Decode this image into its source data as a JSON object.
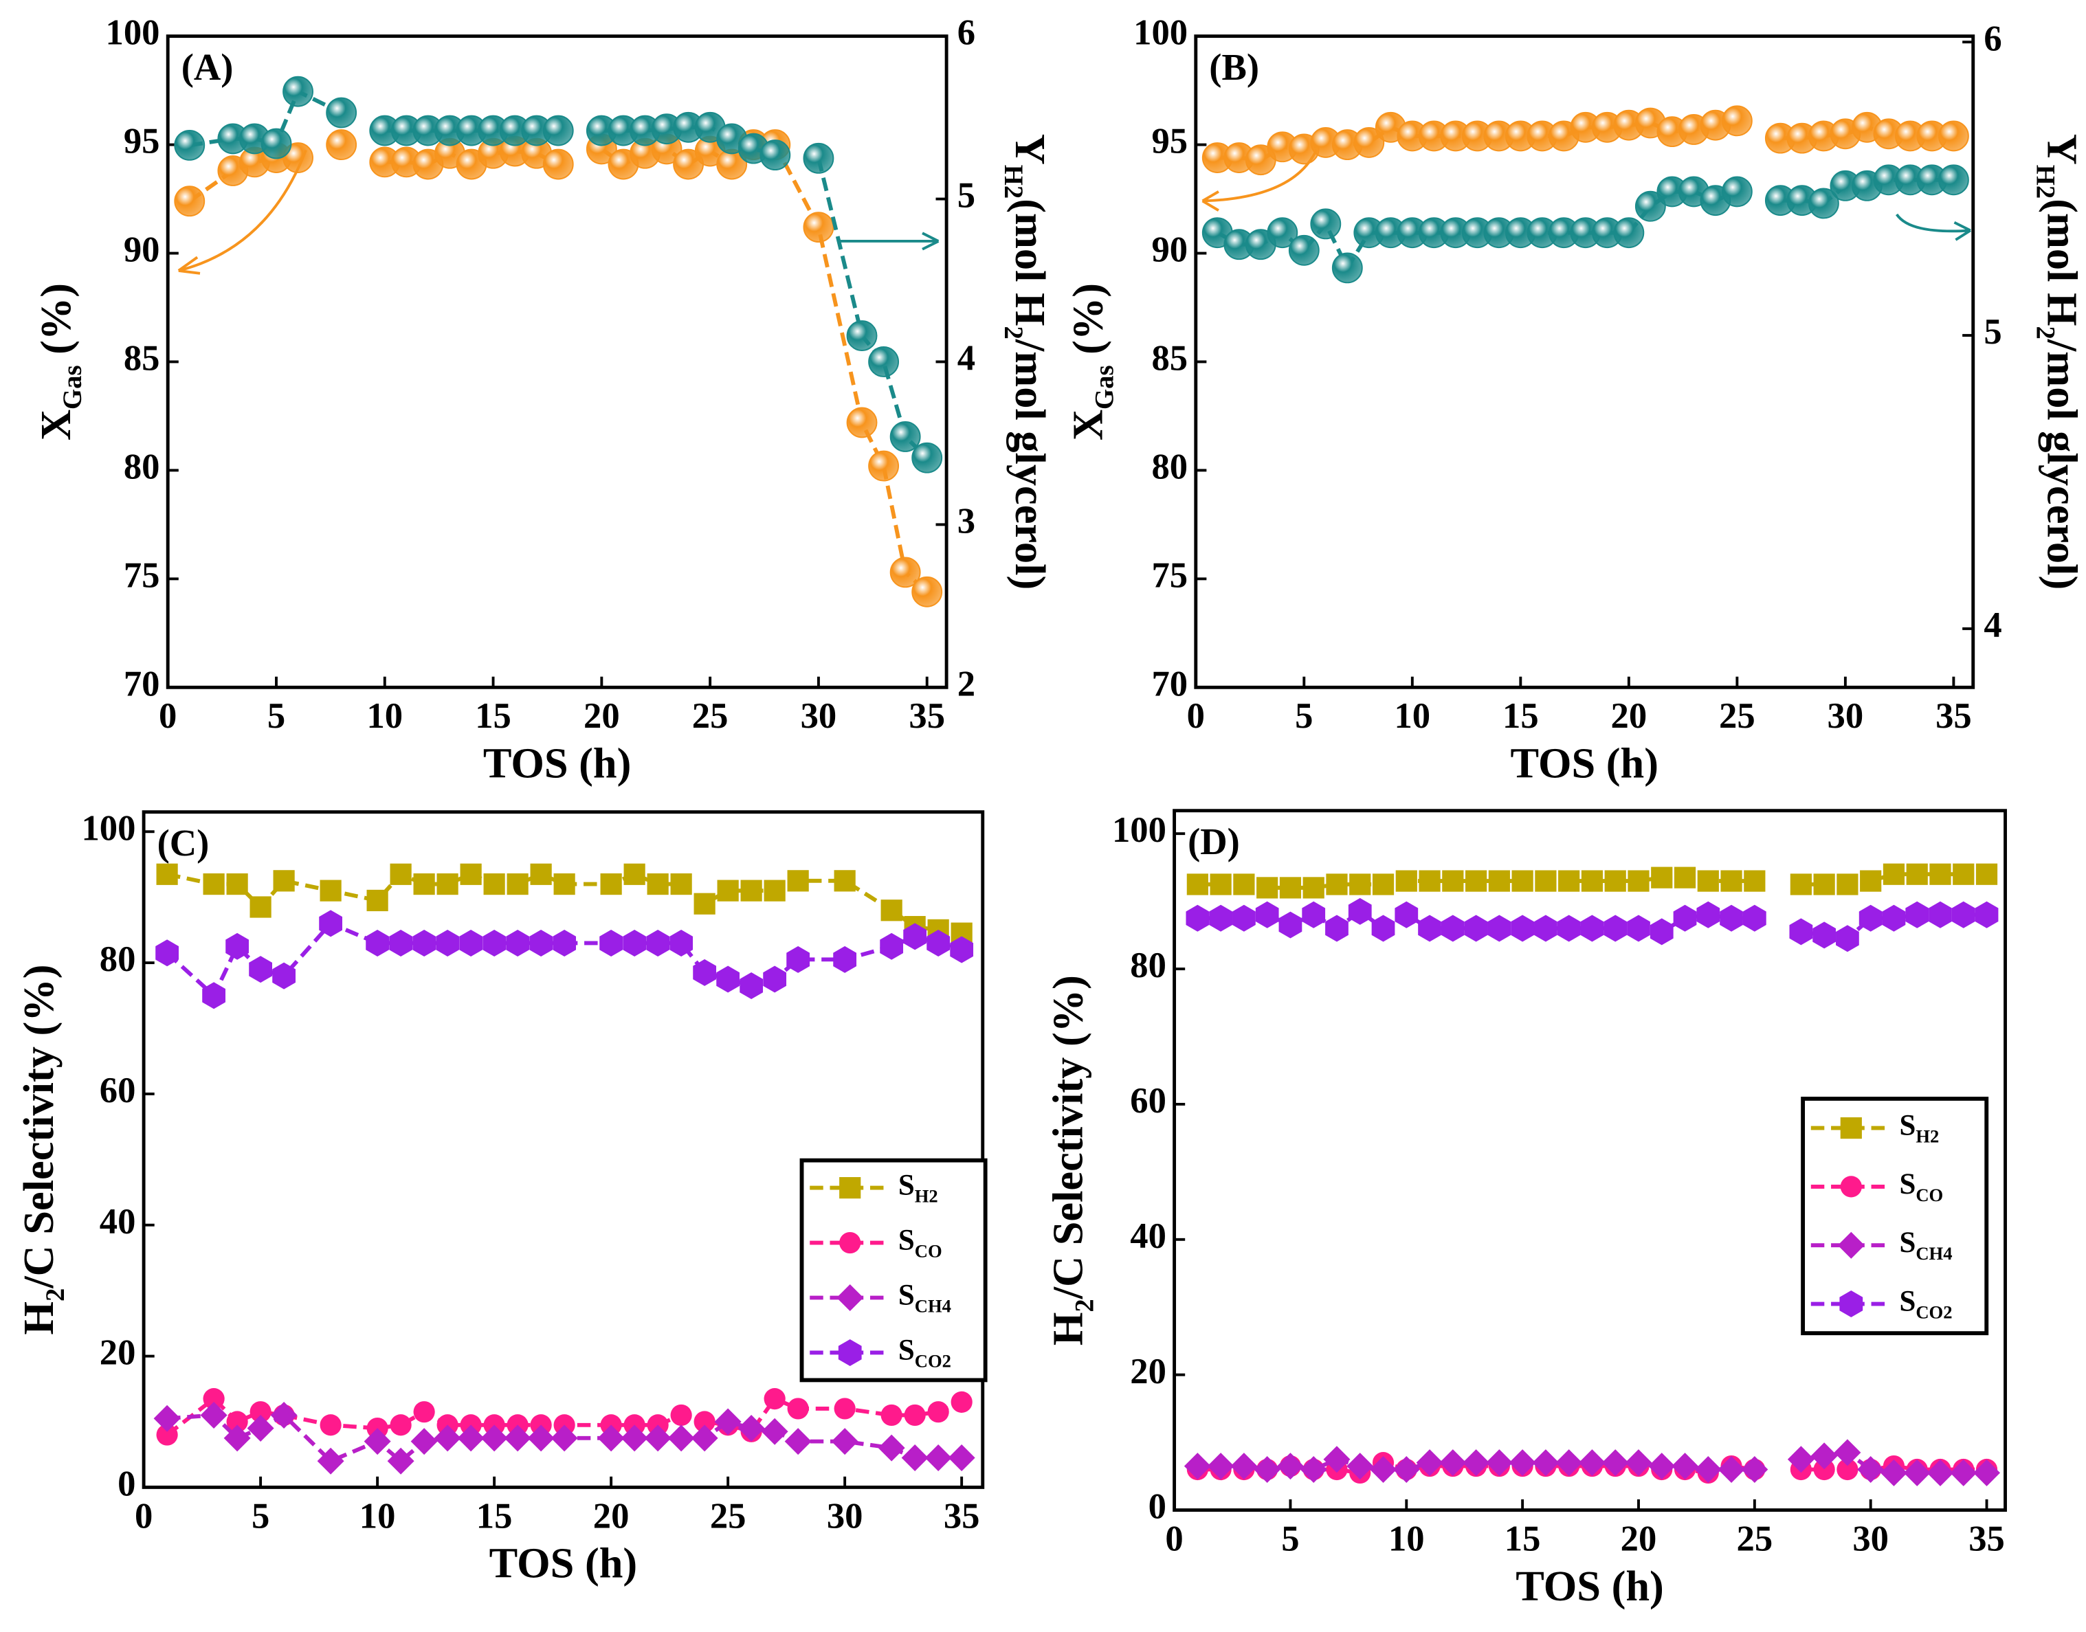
{
  "chart_data": [
    {
      "type": "line",
      "title": "(A)",
      "xlabel": "TOS (h)",
      "ylabel": [
        "X",
        "Gas",
        " (%)"
      ],
      "y2label": [
        "Y",
        "H2",
        "(mol H",
        "2",
        "/mol glycerol)"
      ],
      "xlim": [
        0,
        35.9
      ],
      "ylim": [
        70,
        100
      ],
      "y2lim": [
        2,
        6
      ],
      "xticks": [
        0,
        5,
        10,
        15,
        20,
        25,
        30,
        35
      ],
      "yticks": [
        70,
        75,
        80,
        85,
        90,
        95,
        100
      ],
      "y2ticks": [
        2,
        3,
        4,
        5,
        6
      ],
      "series": [
        {
          "color": "#f7941d",
          "marker": "sphere",
          "axis": "y",
          "x": [
            1,
            3,
            4,
            5,
            6,
            7,
            8,
            9,
            10,
            11,
            12,
            13,
            14,
            15,
            16,
            17,
            18,
            19,
            20,
            21,
            22,
            23,
            24,
            25,
            26,
            27,
            28,
            30,
            32,
            33,
            34,
            35
          ],
          "values": [
            92.4,
            93.8,
            94.2,
            94.4,
            94.4,
            null,
            95,
            null,
            94.2,
            94.2,
            94.1,
            94.6,
            94.1,
            94.6,
            94.7,
            94.6,
            94.1,
            null,
            94.8,
            94.1,
            94.6,
            94.8,
            94.1,
            94.7,
            94.1,
            95,
            95,
            91.2,
            82.2,
            80.2,
            75.3,
            74.4
          ]
        },
        {
          "color": "#1a8a8a",
          "marker": "sphere",
          "axis": "y2",
          "x": [
            1,
            3,
            4,
            5,
            6,
            8,
            9,
            10,
            11,
            12,
            13,
            14,
            15,
            16,
            17,
            18,
            19,
            20,
            21,
            22,
            23,
            24,
            25,
            26,
            27,
            28,
            29,
            30,
            32,
            33,
            34,
            35
          ],
          "values": [
            5.33,
            5.37,
            5.37,
            5.34,
            5.66,
            5.53,
            null,
            5.42,
            5.42,
            5.42,
            5.42,
            5.42,
            5.42,
            5.42,
            5.42,
            5.42,
            null,
            5.42,
            5.42,
            5.42,
            5.43,
            5.44,
            5.44,
            5.37,
            5.31,
            5.27,
            null,
            5.25,
            4.16,
            4.0,
            3.54,
            3.41
          ]
        }
      ]
    },
    {
      "type": "line",
      "title": "(B)",
      "xlabel": "TOS (h)",
      "ylabel": [
        "X",
        "Gas",
        " (%)"
      ],
      "y2label": [
        "Y",
        "H2",
        "(mol H",
        "2",
        "/mol glycerol)"
      ],
      "xlim": [
        0,
        35.9
      ],
      "ylim": [
        70,
        100
      ],
      "y2lim": [
        3.8,
        6.02
      ],
      "xticks": [
        0,
        5,
        10,
        15,
        20,
        25,
        30,
        35
      ],
      "yticks": [
        70,
        75,
        80,
        85,
        90,
        95,
        100
      ],
      "y2ticks": [
        4,
        5,
        6
      ],
      "x": [
        1,
        2,
        3,
        4,
        5,
        6,
        7,
        8,
        9,
        10,
        11,
        12,
        13,
        14,
        15,
        16,
        17,
        18,
        19,
        20,
        21,
        22,
        23,
        24,
        25,
        26,
        27,
        28,
        29,
        30,
        31,
        32,
        33,
        34,
        35
      ],
      "series": [
        {
          "color": "#f7941d",
          "marker": "sphere",
          "axis": "y",
          "values": [
            94.4,
            94.4,
            94.3,
            94.9,
            94.8,
            95.1,
            95,
            95.1,
            95.8,
            95.4,
            95.4,
            95.4,
            95.4,
            95.4,
            95.4,
            95.4,
            95.4,
            95.8,
            95.8,
            95.9,
            96,
            95.6,
            95.7,
            95.9,
            96.1,
            null,
            95.3,
            95.3,
            95.4,
            95.5,
            95.8,
            95.5,
            95.4,
            95.4,
            95.4
          ]
        },
        {
          "color": "#1a8a8a",
          "marker": "sphere",
          "axis": "y2",
          "values": [
            5.35,
            5.31,
            5.31,
            5.35,
            5.29,
            5.38,
            5.23,
            5.35,
            5.35,
            5.35,
            5.35,
            5.35,
            5.35,
            5.35,
            5.35,
            5.35,
            5.35,
            5.35,
            5.35,
            5.35,
            5.44,
            5.49,
            5.49,
            5.46,
            5.49,
            null,
            5.46,
            5.46,
            5.45,
            5.51,
            5.51,
            5.53,
            5.53,
            5.53,
            5.53
          ]
        }
      ]
    },
    {
      "type": "line",
      "title": "(C)",
      "xlabel": "TOS (h)",
      "ylabel": [
        "H",
        "2",
        "/C Selectivity (%)"
      ],
      "xlim": [
        0,
        35.9
      ],
      "ylim": [
        0,
        103
      ],
      "xticks": [
        0,
        5,
        10,
        15,
        20,
        25,
        30,
        35
      ],
      "yticks": [
        0,
        20,
        40,
        60,
        80,
        100
      ],
      "legend": "center right",
      "x": [
        1,
        3,
        4,
        5,
        6,
        8,
        10,
        11,
        12,
        13,
        14,
        15,
        16,
        17,
        18,
        20,
        21,
        22,
        23,
        24,
        25,
        26,
        27,
        28,
        30,
        32,
        33,
        34,
        35
      ],
      "series": [
        {
          "name": [
            "S",
            "H2"
          ],
          "color": "#c0a800",
          "marker": "square",
          "values": [
            93.5,
            92,
            92,
            88.5,
            92.5,
            91,
            89.5,
            93.5,
            92,
            92,
            93.5,
            92,
            92,
            93.5,
            92,
            92,
            93.5,
            92,
            92,
            89,
            91,
            91,
            91,
            92.5,
            92.5,
            88,
            85.5,
            85,
            84.5
          ]
        },
        {
          "name": [
            "S",
            "CO"
          ],
          "color": "#ff1a8c",
          "marker": "circle",
          "values": [
            8,
            13.5,
            10,
            11.5,
            11,
            9.5,
            9,
            9.5,
            11.5,
            9.5,
            9.5,
            9.5,
            9.5,
            9.5,
            9.5,
            9.5,
            9.5,
            9.5,
            11,
            10,
            9.5,
            8.5,
            13.5,
            12,
            12,
            11,
            11,
            11.5,
            13
          ]
        },
        {
          "name": [
            "S",
            "CH4"
          ],
          "color": "#b81fc8",
          "marker": "diamond",
          "values": [
            10.5,
            11,
            7.5,
            9,
            11,
            4,
            7,
            4,
            7,
            7.5,
            7.5,
            7.5,
            7.5,
            7.5,
            7.5,
            7.5,
            7.5,
            7.5,
            7.5,
            7.5,
            10,
            9,
            8.5,
            7,
            7,
            6,
            4.5,
            4.5,
            4.5
          ]
        },
        {
          "name": [
            "S",
            "CO2"
          ],
          "color": "#9a1fe6",
          "marker": "hexagon",
          "values": [
            81.5,
            75,
            82.5,
            79,
            78,
            86,
            83,
            83,
            83,
            83,
            83,
            83,
            83,
            83,
            83,
            83,
            83,
            83,
            83,
            78.5,
            77.5,
            76.5,
            77.5,
            80.5,
            80.5,
            82.5,
            84,
            83,
            82
          ]
        }
      ]
    },
    {
      "type": "line",
      "title": "(D)",
      "xlabel": "TOS (h)",
      "ylabel": [
        "H",
        "2",
        "/C Selectivity (%)"
      ],
      "xlim": [
        0,
        35.8
      ],
      "ylim": [
        0,
        103.4
      ],
      "xticks": [
        0,
        5,
        10,
        15,
        20,
        25,
        30,
        35
      ],
      "yticks": [
        0,
        20,
        40,
        60,
        80,
        100
      ],
      "legend": "center right",
      "x": [
        1,
        2,
        3,
        4,
        5,
        6,
        7,
        8,
        9,
        10,
        11,
        12,
        13,
        14,
        15,
        16,
        17,
        18,
        19,
        20,
        21,
        22,
        23,
        24,
        25,
        26,
        27,
        28,
        29,
        30,
        31,
        32,
        33,
        34,
        35
      ],
      "series": [
        {
          "name": [
            "S",
            "H2"
          ],
          "color": "#c0a800",
          "marker": "square",
          "values": [
            92.5,
            92.5,
            92.5,
            92,
            92,
            92,
            92.5,
            92.5,
            92.5,
            93,
            93,
            93,
            93,
            93,
            93,
            93,
            93,
            93,
            93,
            93,
            93.5,
            93.5,
            93,
            93,
            93,
            null,
            92.5,
            92.5,
            92.5,
            93,
            94,
            94,
            94,
            94,
            94
          ]
        },
        {
          "name": [
            "S",
            "CO"
          ],
          "color": "#ff1a8c",
          "marker": "circle",
          "values": [
            6,
            6,
            6,
            6,
            6.5,
            6,
            6,
            5.5,
            7,
            6,
            6.5,
            6.5,
            6.5,
            6.5,
            6.5,
            6.5,
            6.5,
            6.5,
            6.5,
            6.5,
            6,
            6,
            5.5,
            6.5,
            6,
            null,
            6,
            6,
            6,
            6,
            6.5,
            6,
            6,
            6,
            6
          ]
        },
        {
          "name": [
            "S",
            "CH4"
          ],
          "color": "#b81fc8",
          "marker": "diamond",
          "values": [
            6.5,
            6.5,
            6.5,
            6,
            6.5,
            6,
            7.5,
            6.5,
            6,
            6,
            7,
            7,
            7,
            7,
            7,
            7,
            7,
            7,
            7,
            7,
            6.5,
            6.5,
            6,
            6,
            6,
            null,
            7.5,
            8,
            8.5,
            6,
            5.5,
            5.5,
            5.5,
            5.5,
            5.5
          ]
        },
        {
          "name": [
            "S",
            "CO2"
          ],
          "color": "#9a1fe6",
          "marker": "hexagon",
          "values": [
            87.5,
            87.5,
            87.5,
            88,
            86.5,
            88,
            86,
            88.5,
            86,
            88,
            86,
            86,
            86,
            86,
            86,
            86,
            86,
            86,
            86,
            86,
            85.5,
            87.5,
            88,
            87.5,
            87.5,
            null,
            85.5,
            85,
            84.5,
            87.5,
            87.5,
            88,
            88,
            88,
            88
          ]
        }
      ]
    }
  ]
}
